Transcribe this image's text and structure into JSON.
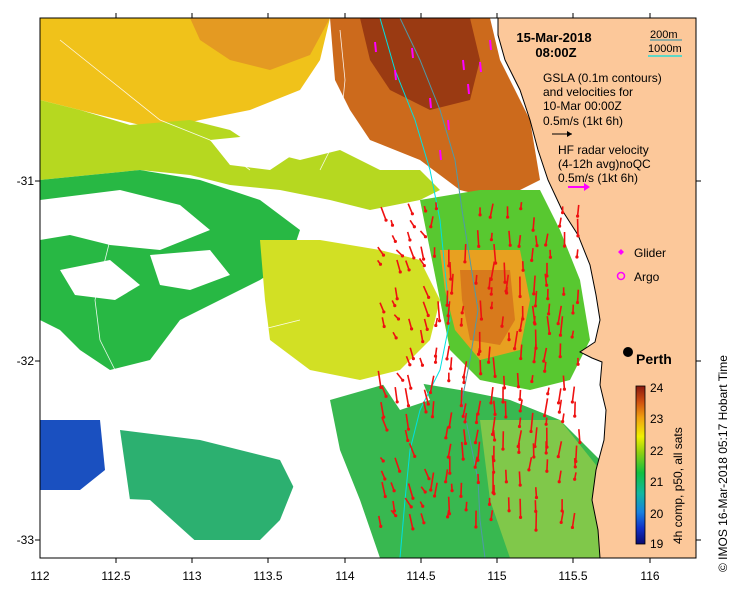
{
  "title": {
    "date": "15-Mar-2018",
    "time": "08:00Z"
  },
  "depth_legend": {
    "contour_200": "200m",
    "contour_1000": "1000m",
    "color_200": "#4f9aa8",
    "color_1000": "#00e0e0"
  },
  "gsla_legend": {
    "line1": "GSLA (0.1m contours)",
    "line2": "and velocities for",
    "line3": "10-Mar 00:00Z",
    "scale": "0.5m/s (1kt 6h)",
    "arrow_color": "#000000"
  },
  "hf_legend": {
    "line1": "HF radar velocity",
    "line2": "(4-12h avg)noQC",
    "scale": "0.5m/s (1kt 6h)",
    "arrow_color": "#ff00ff"
  },
  "symbols": {
    "glider": "Glider",
    "argo": "Argo",
    "color": "#ff00ff"
  },
  "city": {
    "name": "Perth",
    "lon": 115.86,
    "lat": -31.95
  },
  "colorbar": {
    "label": "4h comp, p50, all sats",
    "ticks": [
      "24",
      "23",
      "22",
      "21",
      "20",
      "19"
    ],
    "min": 19,
    "max": 24
  },
  "side_label": "© IMOS 16-Mar-2018 05:17 Hobart Time",
  "axes": {
    "xlim": [
      112,
      116.3
    ],
    "ylim": [
      -33.1,
      -30.1
    ],
    "xticks": [
      "112",
      "112.5",
      "113",
      "113.5",
      "114",
      "114.5",
      "115",
      "115.5",
      "116"
    ],
    "yticks": [
      "-31",
      "-32",
      "-33"
    ]
  },
  "colors": {
    "land": "#fcc89a",
    "no_data": "#ffffff",
    "hf_vector": "#ee1111"
  }
}
